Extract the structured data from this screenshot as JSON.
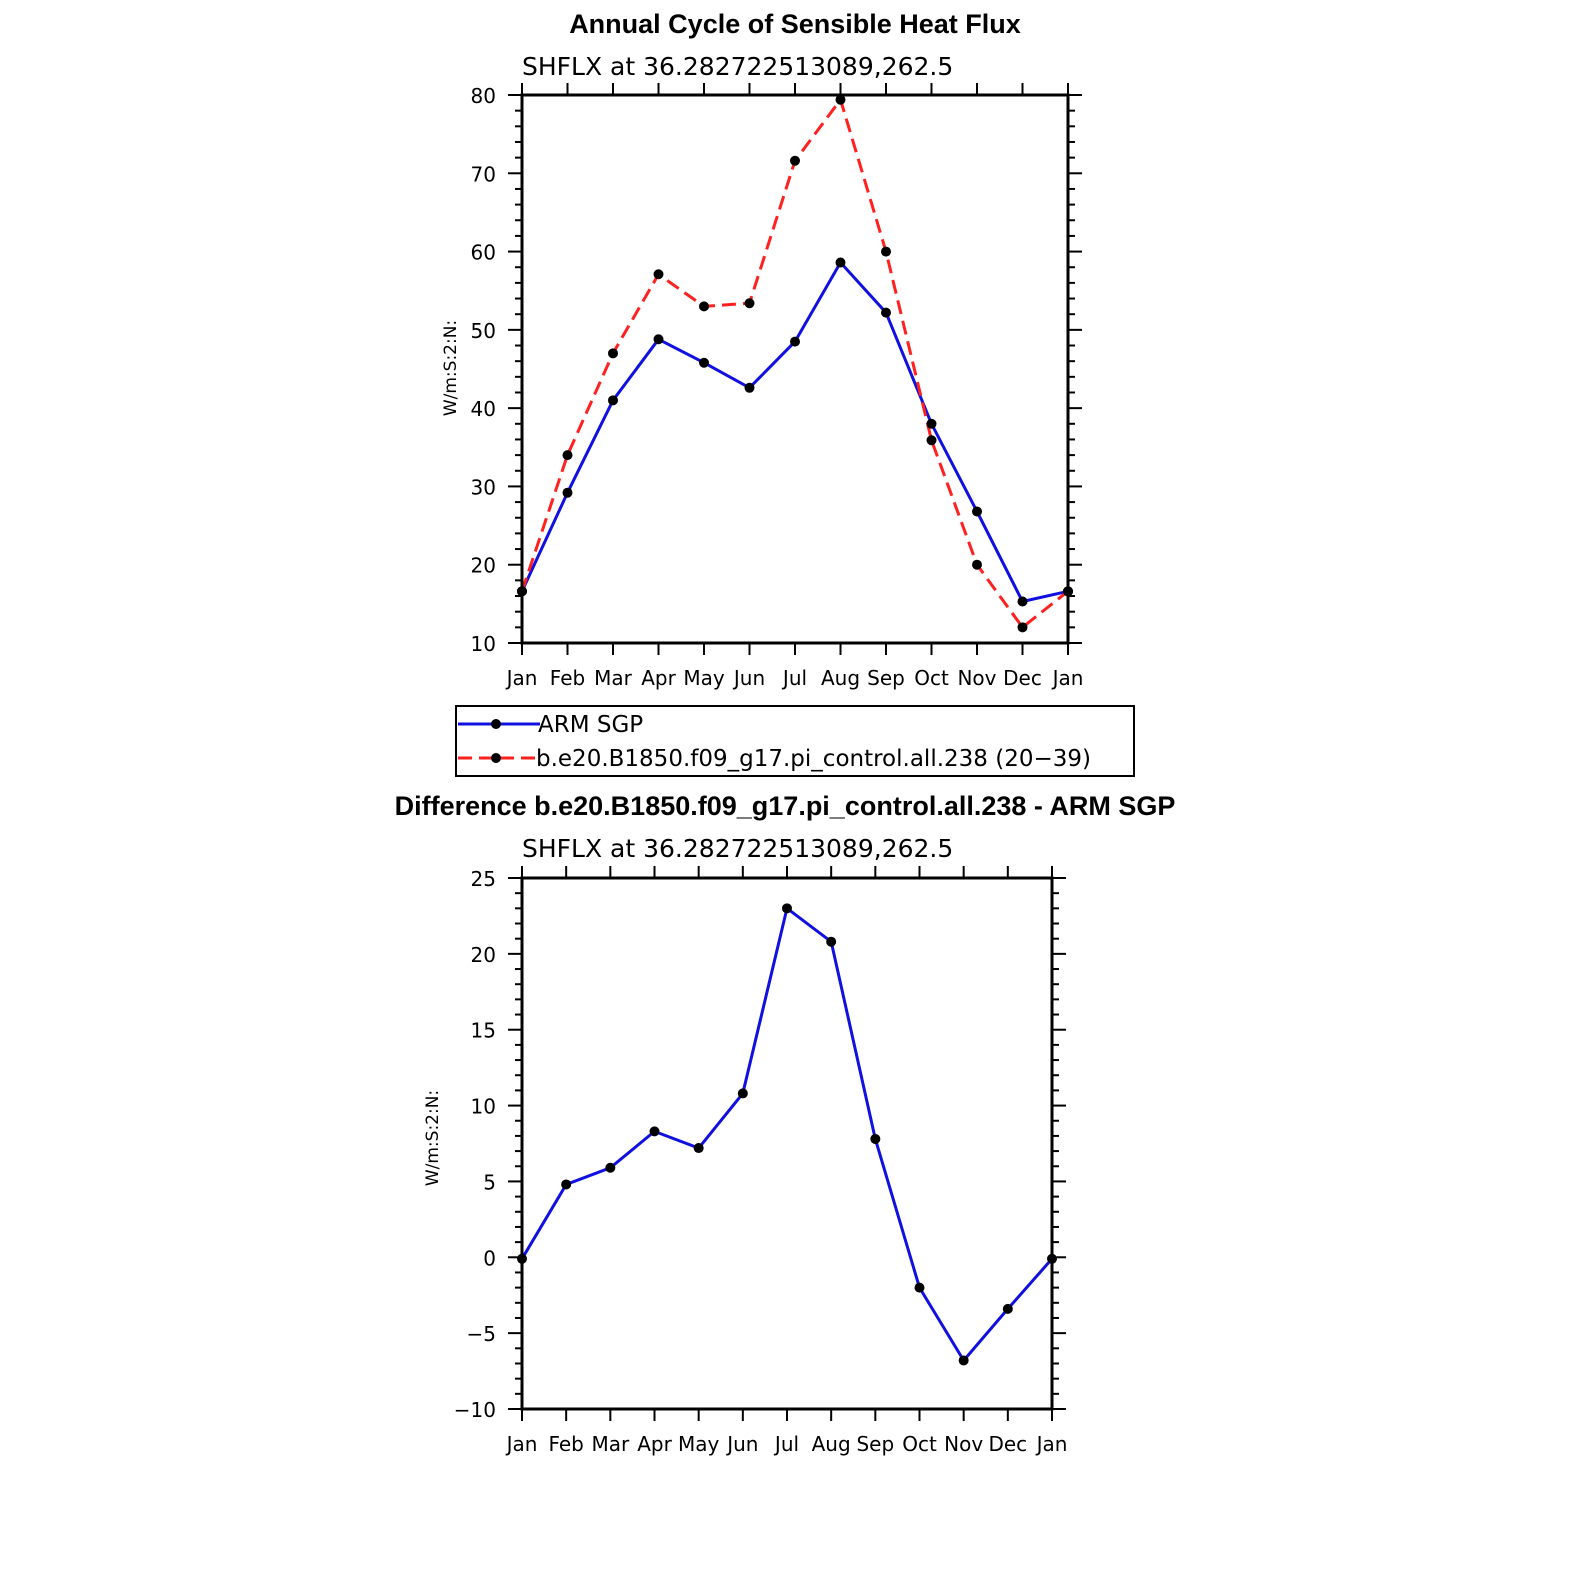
{
  "chart_data": [
    {
      "type": "line",
      "title": "Annual Cycle of Sensible Heat Flux",
      "subtitle": "SHFLX at 36.282722513089,262.5",
      "ylabel": "W/m:S:2:N:",
      "xlabel": "",
      "categories": [
        "Jan",
        "Feb",
        "Mar",
        "Apr",
        "May",
        "Jun",
        "Jul",
        "Aug",
        "Sep",
        "Oct",
        "Nov",
        "Dec",
        "Jan"
      ],
      "ylim": [
        10,
        80
      ],
      "yticks": [
        "10",
        "20",
        "30",
        "40",
        "50",
        "60",
        "70",
        "80"
      ],
      "ytick_values": [
        10,
        20,
        30,
        40,
        50,
        60,
        70,
        80
      ],
      "series": [
        {
          "name": "ARM SGP",
          "color": "#1010e0",
          "dash": "solid",
          "values": [
            16.6,
            29.2,
            41.0,
            48.8,
            45.8,
            42.6,
            48.5,
            58.6,
            52.2,
            38.0,
            26.8,
            15.3,
            16.6
          ]
        },
        {
          "name": "b.e20.B1850.f09_g17.pi_control.all.238 (20−39)",
          "color": "#ff2020",
          "dash": "dashed",
          "values": [
            16.6,
            34.0,
            47.0,
            57.1,
            53.0,
            53.4,
            71.6,
            79.4,
            60.0,
            35.9,
            20.0,
            12.0,
            16.6
          ]
        }
      ],
      "legend": "below"
    },
    {
      "type": "line",
      "title": "Difference b.e20.B1850.f09_g17.pi_control.all.238 - ARM SGP",
      "subtitle": "SHFLX at 36.282722513089,262.5",
      "ylabel": "W/m:S:2:N:",
      "xlabel": "",
      "categories": [
        "Jan",
        "Feb",
        "Mar",
        "Apr",
        "May",
        "Jun",
        "Jul",
        "Aug",
        "Sep",
        "Oct",
        "Nov",
        "Dec",
        "Jan"
      ],
      "ylim": [
        -10,
        25
      ],
      "yticks": [
        "−10",
        "−5",
        "0",
        "5",
        "10",
        "15",
        "20",
        "25"
      ],
      "ytick_values": [
        -10,
        -5,
        0,
        5,
        10,
        15,
        20,
        25
      ],
      "series": [
        {
          "name": "Difference",
          "color": "#1010e0",
          "dash": "solid",
          "values": [
            -0.1,
            4.8,
            5.9,
            8.3,
            7.2,
            10.8,
            23.0,
            20.8,
            7.8,
            -2.0,
            -6.8,
            -3.4,
            -0.1
          ]
        }
      ]
    }
  ]
}
